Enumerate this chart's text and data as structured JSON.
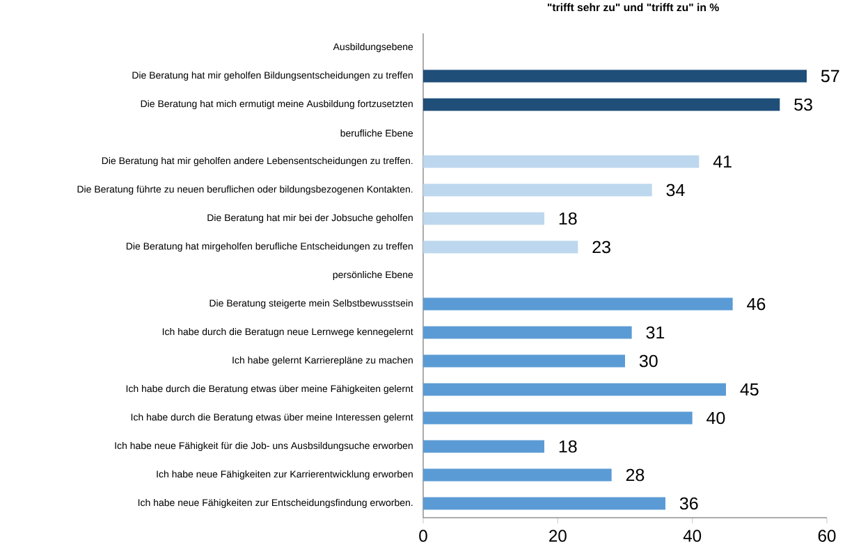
{
  "chart_data": {
    "type": "bar",
    "orientation": "horizontal",
    "title": "\"trifft sehr zu\" und \"trifft zu\" in %",
    "categories": [
      "Ausbildungsebene",
      "Die Beratung hat mir geholfen Bildungsentscheidungen zu treffen",
      "Die Beratung hat mich ermutigt meine Ausbildung fortzusetzten",
      "berufliche Ebene",
      "Die Beratung hat mir geholfen andere Lebensentscheidungen zu treffen.",
      "Die Beratung führte zu neuen beruflichen oder bildungsbezogenen Kontakten.",
      "Die Beratung hat mir bei der Jobsuche geholfen",
      "Die Beratung hat mirgeholfen berufliche Entscheidungen zu treffen",
      "persönliche Ebene",
      "Die Beratung steigerte mein Selbstbewusstsein",
      "Ich habe durch die Beratugn neue Lernwege kennegelernt",
      "Ich habe gelernt Karrierepläne zu machen",
      "Ich habe durch die Beratung etwas über meine Fähigkeiten gelernt",
      "Ich habe durch die Beratung etwas über meine Interessen gelernt",
      "Ich habe  neue Fähigkeit für die Job- uns Ausbsildungsuche erworben",
      "Ich habe neue Fähigkeiten zur Karrierentwicklung erworben",
      "Ich habe neue Fähigkeiten zur Entscheidungsfindung erworben."
    ],
    "values": [
      null,
      57,
      53,
      null,
      41,
      34,
      18,
      23,
      null,
      46,
      31,
      30,
      45,
      40,
      18,
      28,
      36
    ],
    "colors": [
      null,
      "#1f4e79",
      "#1f4e79",
      null,
      "#bdd7ee",
      "#bdd7ee",
      "#bdd7ee",
      "#bdd7ee",
      null,
      "#5b9bd5",
      "#5b9bd5",
      "#5b9bd5",
      "#5b9bd5",
      "#5b9bd5",
      "#5b9bd5",
      "#5b9bd5",
      "#5b9bd5"
    ],
    "xlim": [
      0,
      60
    ],
    "xticks": [
      0,
      20,
      40,
      60
    ],
    "data_labels": true
  }
}
